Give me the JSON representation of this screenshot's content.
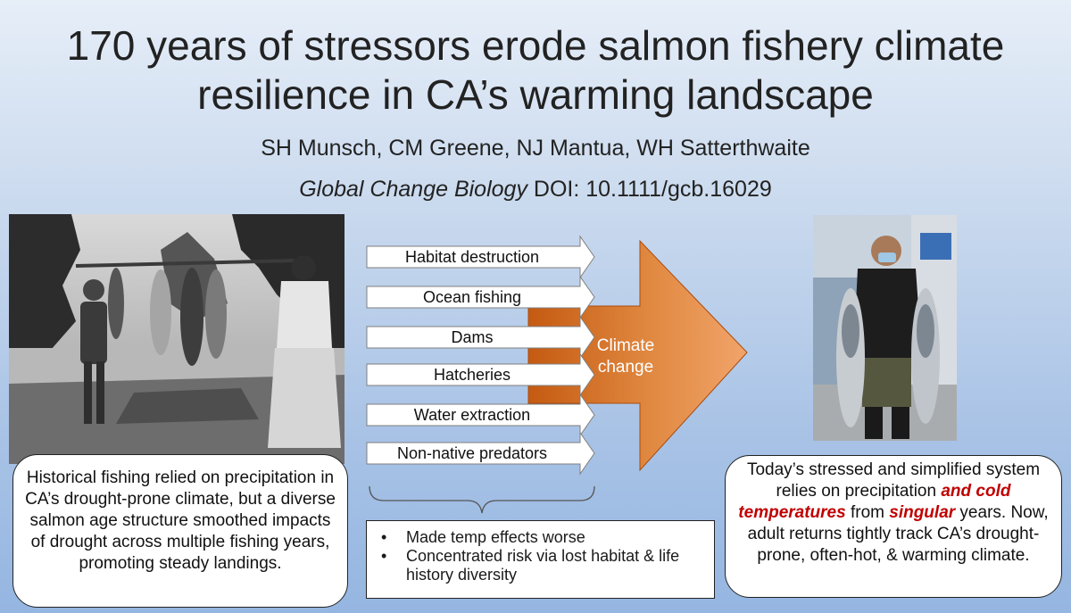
{
  "title": "170 years of stressors erode salmon fishery climate resilience in CA’s warming landscape",
  "authors": "SH Munsch, CM Greene, NJ Mantua, WH Satterthwaite",
  "citation": {
    "journal": "Global Change Biology",
    "doi": " DOI: 10.1111/gcb.16029"
  },
  "stressors": [
    "Habitat destruction",
    "Ocean fishing",
    "Dams",
    "Hatcheries",
    "Water extraction",
    "Non-native predators"
  ],
  "climate_arrow": {
    "label_line1": "Climate",
    "label_line2": "change",
    "color": "#c55a11"
  },
  "left_box": "Historical fishing relied on precipitation in CA’s drought-prone climate, but a diverse salmon age structure smoothed impacts of drought across multiple fishing years, promoting steady landings.",
  "middle_box": {
    "bullets": [
      "Made temp effects worse",
      "Concentrated risk via lost habitat & life history diversity"
    ]
  },
  "right_box": {
    "part1": "Today’s stressed and simplified system relies on precipitation ",
    "highlight1": "and cold temperatures",
    "part2": " from ",
    "highlight2": "singular",
    "part3": " years. Now, adult returns tightly track CA’s drought-prone, often-hot, & warming climate."
  },
  "colors": {
    "highlight": "#c00000",
    "arrow_orange": "#c55a11"
  }
}
